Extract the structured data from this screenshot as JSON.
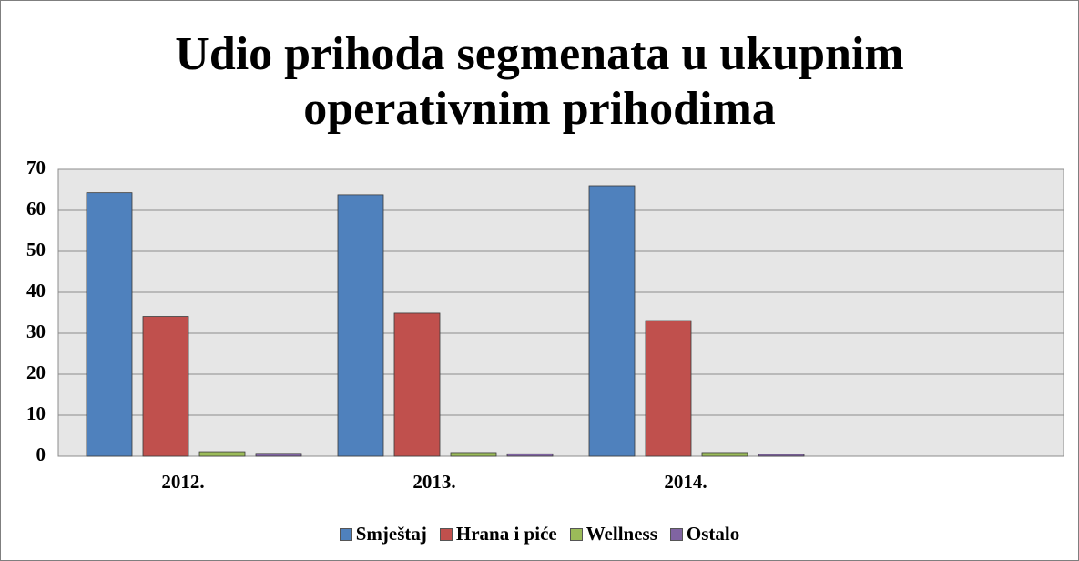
{
  "chart_data": {
    "type": "bar",
    "title": "Udio prihoda segmenata u ukupnim operativnim prihodima",
    "categories": [
      "2012.",
      "2013.",
      "2014.",
      null
    ],
    "series": [
      {
        "name": "Smještaj",
        "color": "#4f81bd",
        "values": [
          64.3,
          63.8,
          66,
          null
        ]
      },
      {
        "name": "Hrana i piće",
        "color": "#c0504d",
        "values": [
          34.1,
          34.9,
          33.1,
          null
        ]
      },
      {
        "name": "Wellness",
        "color": "#9bbb59",
        "values": [
          1.1,
          0.9,
          0.9,
          null
        ]
      },
      {
        "name": "Ostalo",
        "color": "#8064a2",
        "values": [
          0.7,
          0.6,
          0.5,
          null
        ]
      }
    ],
    "ylim": [
      0,
      70
    ],
    "yticks": [
      0,
      10,
      20,
      30,
      40,
      50,
      60,
      70
    ],
    "grid": true,
    "legend": "bottom"
  }
}
